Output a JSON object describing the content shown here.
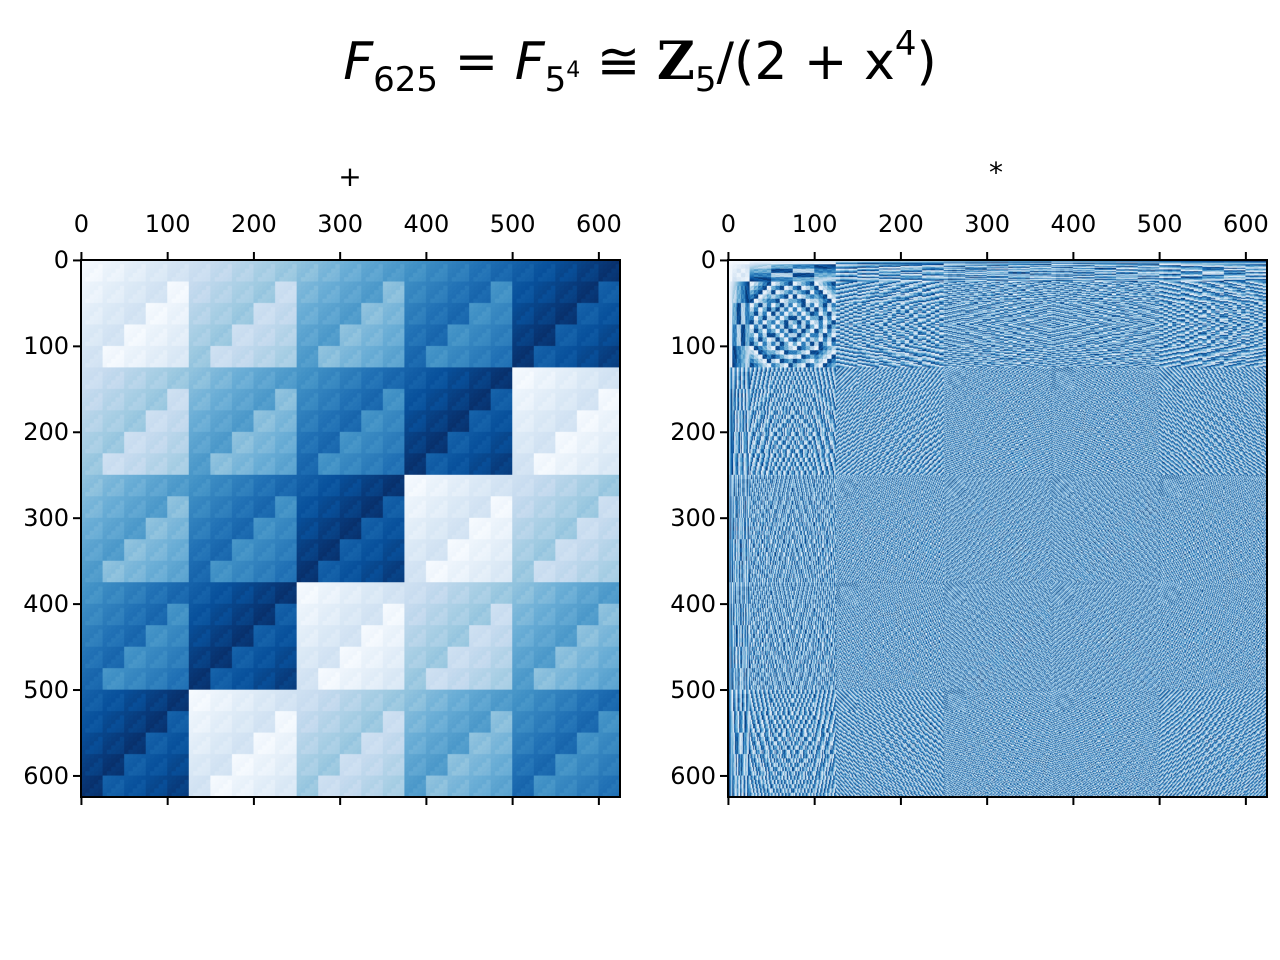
{
  "title": {
    "main": "F",
    "main_sub": "625",
    "eq": "=",
    "f": "F",
    "f_sub_base": "5",
    "f_sub_exp": "4",
    "cong": "≅",
    "z": "Z",
    "z_sub": "5",
    "tail": "/(2 + x",
    "tail_sup": "4",
    "close": ")"
  },
  "chart_data": [
    {
      "type": "heatmap",
      "title": "+",
      "description_op": "addition",
      "field_order": 625,
      "prime": 5,
      "degree": 4,
      "modulus_coeffs": [
        2,
        0,
        0,
        0,
        1
      ],
      "colormap": "Blues",
      "value_range": [
        0,
        624
      ],
      "x_ticks": [
        0,
        100,
        200,
        300,
        400,
        500,
        600
      ],
      "y_ticks": [
        0,
        100,
        200,
        300,
        400,
        500,
        600
      ],
      "xlim": [
        -0.5,
        624.5
      ],
      "ylim": [
        624.5,
        -0.5
      ],
      "x_axis_position": "top"
    },
    {
      "type": "heatmap",
      "title": "*",
      "description_op": "multiplication",
      "field_order": 625,
      "prime": 5,
      "degree": 4,
      "modulus_coeffs": [
        2,
        0,
        0,
        0,
        1
      ],
      "colormap": "Blues",
      "value_range": [
        0,
        624
      ],
      "x_ticks": [
        0,
        100,
        200,
        300,
        400,
        500,
        600
      ],
      "y_ticks": [
        0,
        100,
        200,
        300,
        400,
        500,
        600
      ],
      "xlim": [
        -0.5,
        624.5
      ],
      "ylim": [
        624.5,
        -0.5
      ],
      "x_axis_position": "top"
    }
  ]
}
